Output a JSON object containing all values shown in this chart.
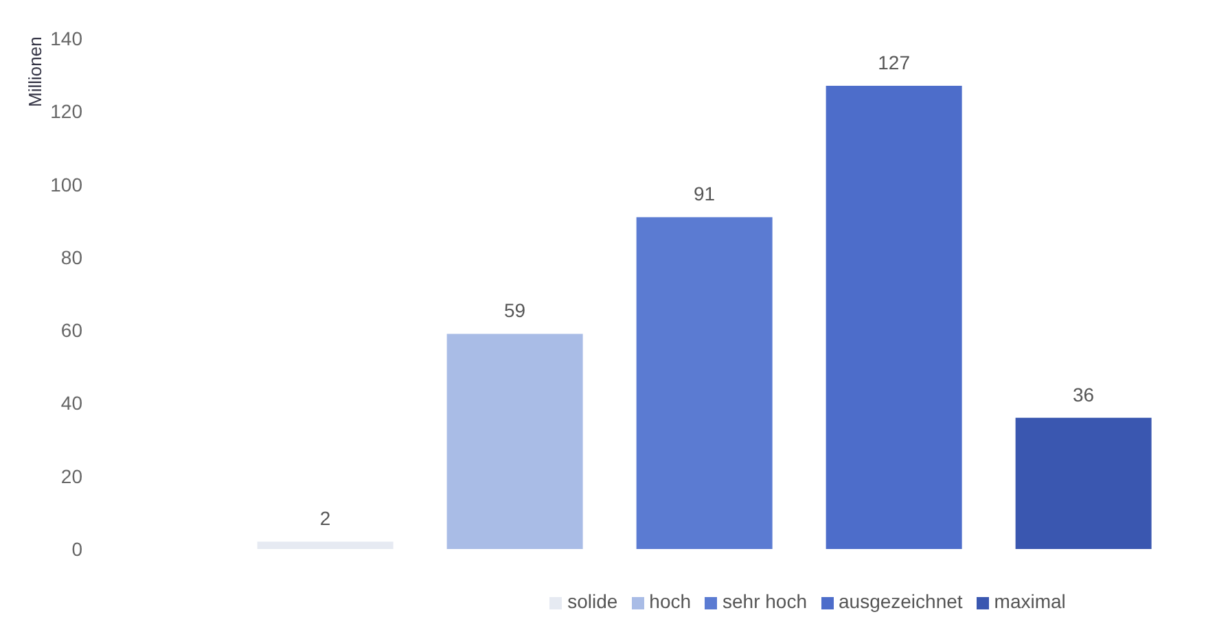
{
  "chart_data": {
    "type": "bar",
    "ylabel": "Millionen",
    "categories": [
      null,
      null,
      null,
      null,
      null
    ],
    "stacked": true,
    "series": [
      {
        "name": "solide",
        "color": "#e6eaf2",
        "values": [
          2,
          null,
          null,
          null,
          null
        ]
      },
      {
        "name": "hoch",
        "color": "#a9bce6",
        "values": [
          null,
          59,
          null,
          null,
          null
        ]
      },
      {
        "name": "sehr hoch",
        "color": "#5b7bd2",
        "values": [
          null,
          null,
          91,
          null,
          null
        ]
      },
      {
        "name": "ausgezeichnet",
        "color": "#4d6dca",
        "values": [
          null,
          null,
          null,
          127,
          null
        ]
      },
      {
        "name": "maximal",
        "color": "#3a57b0",
        "values": [
          null,
          null,
          null,
          null,
          36
        ]
      }
    ],
    "ylim": [
      0,
      140
    ],
    "yticks": [
      0,
      20,
      40,
      60,
      80,
      100,
      120,
      140
    ],
    "data_labels": true,
    "legend": "bottom",
    "grid": false
  }
}
